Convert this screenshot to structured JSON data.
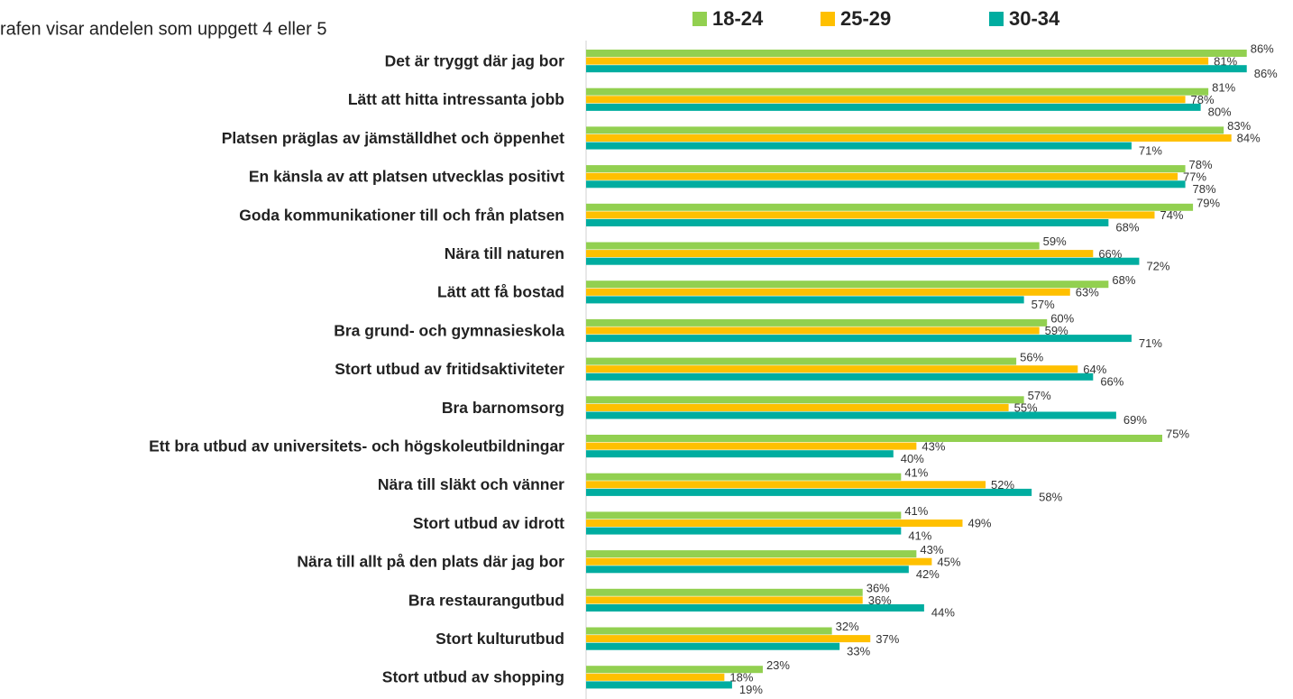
{
  "chart_data": {
    "type": "bar",
    "orientation": "horizontal",
    "subtitle": "rafen visar andelen som uppgett 4 eller 5",
    "categories": [
      "Det är tryggt där jag bor",
      "Lätt att hitta intressanta jobb",
      "Platsen präglas av jämställdhet och öppenhet",
      "En känsla av att platsen utvecklas positivt ",
      "Goda kommunikationer till och från platsen",
      "Nära till naturen ",
      "Lätt att få bostad",
      "Bra grund- och gymnasieskola",
      "Stort utbud av fritidsaktiviteter",
      "Bra barnomsorg ",
      "Ett bra utbud av universitets- och högskoleutbildningar",
      "Nära till släkt och vänner",
      "Stort utbud av idrott",
      "Nära till allt på den plats där jag bor ",
      "Bra restaurangutbud",
      "Stort kulturutbud",
      "Stort utbud av shopping"
    ],
    "series": [
      {
        "name": "18-24",
        "color": "#92d050",
        "values": [
          86,
          81,
          83,
          78,
          79,
          59,
          68,
          60,
          56,
          57,
          75,
          41,
          41,
          43,
          36,
          32,
          23
        ],
        "value_labels": [
          "86%",
          "81%",
          "83%",
          "78%",
          "79%",
          "59%",
          "68%",
          "60%",
          "56%",
          "57%",
          "75%",
          "41%",
          "41%",
          "43%",
          "36%",
          "32%",
          "23%"
        ]
      },
      {
        "name": "25-29",
        "color": "#ffc000",
        "values": [
          81,
          78,
          84,
          77,
          74,
          66,
          63,
          59,
          64,
          55,
          43,
          52,
          49,
          45,
          36,
          37,
          18
        ],
        "value_labels": [
          "81%",
          "78%",
          "84%",
          "77%",
          "74%",
          "66%",
          "63%",
          "59%",
          "64%",
          "55%",
          "43%",
          "52%",
          "49%",
          "45%",
          "36%",
          "37%",
          "18%"
        ]
      },
      {
        "name": "30-34",
        "color": "#00ada0",
        "values": [
          86,
          80,
          71,
          78,
          68,
          72,
          57,
          71,
          66,
          69,
          40,
          58,
          41,
          42,
          44,
          33,
          19
        ],
        "value_labels": [
          "86%",
          "80%",
          "71%",
          "78%",
          "68%",
          "72%",
          "57%",
          "71%",
          "66%",
          "69%",
          "40%",
          "58%",
          "41%",
          "42%",
          "44%",
          "33%",
          "19%"
        ]
      }
    ],
    "xlim": [
      0,
      100
    ],
    "legend": "top"
  }
}
